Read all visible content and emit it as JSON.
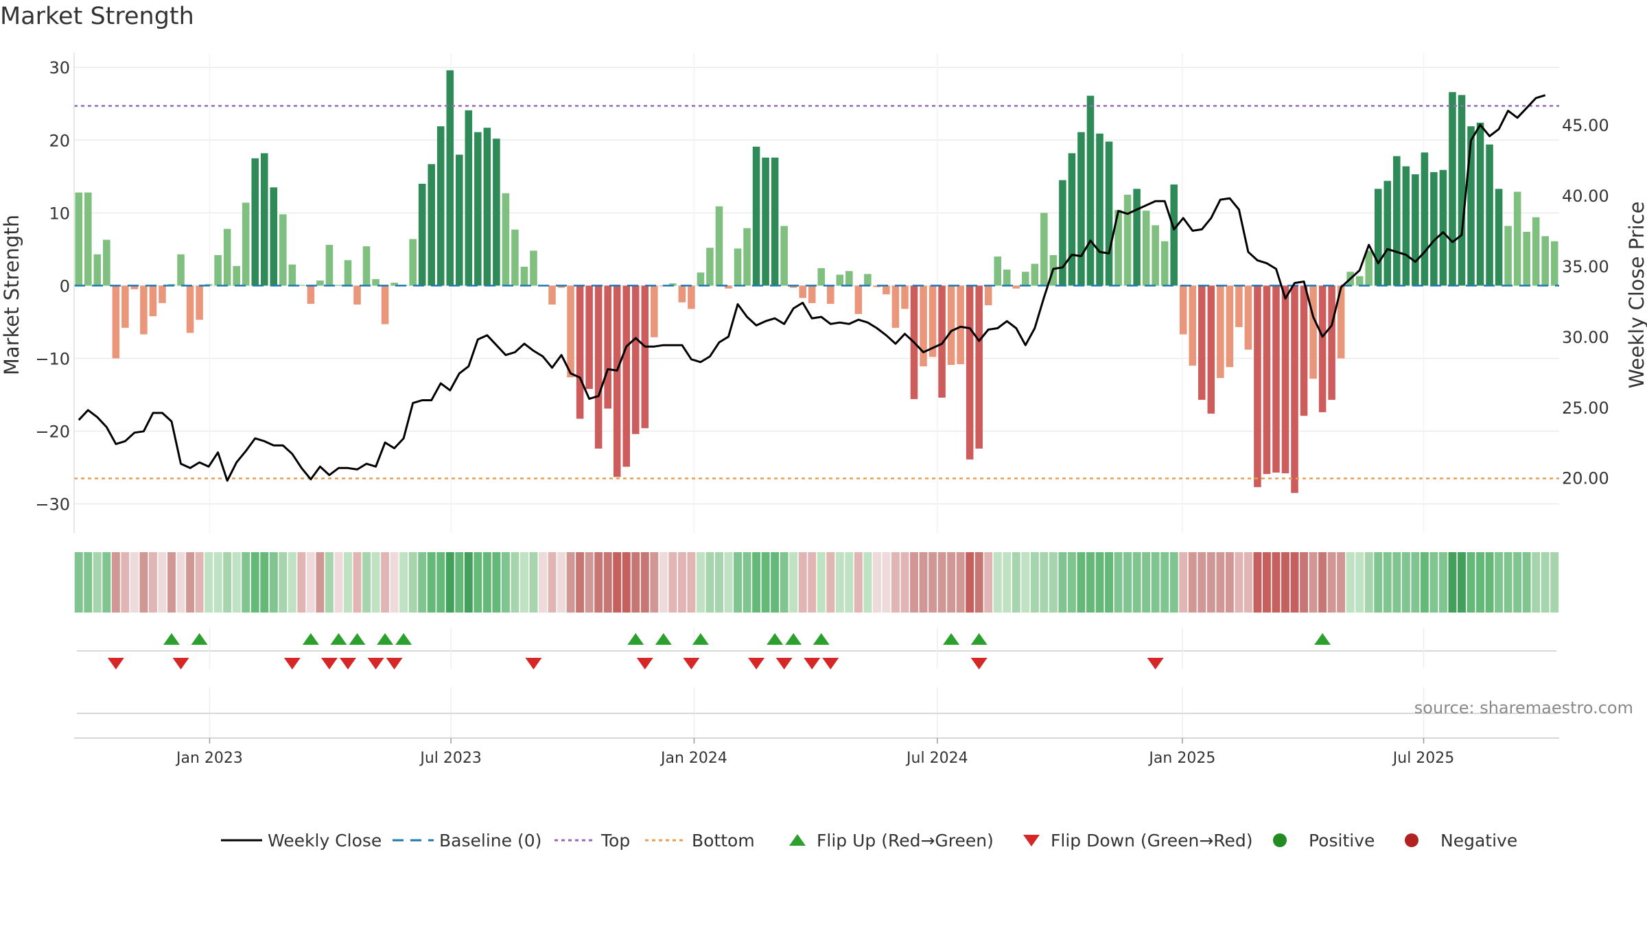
{
  "chart_data": {
    "type": "bar",
    "title": "Market Strength",
    "ylabel_left": "Market Strength",
    "ylabel_right": "Weekly Close Price",
    "source": "source: sharemaestro.com",
    "left_ylim": [
      -34,
      32
    ],
    "left_ticks": [
      -30,
      -20,
      -10,
      0,
      10,
      20,
      30
    ],
    "left_tick_labels": [
      "−30",
      "−20",
      "−10",
      "0",
      "10",
      "20",
      "30"
    ],
    "right_ylim": [
      16.1,
      50.1
    ],
    "right_ticks": [
      20,
      25,
      30,
      35,
      40,
      45
    ],
    "right_tick_labels": [
      "20.00",
      "25.00",
      "30.00",
      "35.00",
      "40.00",
      "45.00"
    ],
    "x_tick_labels": [
      "Jan 2023",
      "Jul 2023",
      "Jan 2024",
      "Jul 2024",
      "Jan 2025",
      "Jul 2025"
    ],
    "x_tick_weeks": [
      14.6,
      40.6,
      66.8,
      93.0,
      119.4,
      145.4
    ],
    "top_level": 24.7,
    "bottom_level": -26.5,
    "strength": [
      12.8,
      12.8,
      4.3,
      6.3,
      -10,
      -5.8,
      -0.5,
      -6.7,
      -4.2,
      -2.4,
      0.2,
      4.3,
      -6.5,
      -4.7,
      0.2,
      4.2,
      7.8,
      2.7,
      11.4,
      17.5,
      18.2,
      13.5,
      9.8,
      2.9,
      0.1,
      -2.5,
      0.7,
      5.6,
      0.1,
      3.5,
      -2.6,
      5.4,
      0.9,
      -5.3,
      0.4,
      0.1,
      6.4,
      14,
      16.7,
      21.9,
      29.6,
      18,
      24.1,
      21.1,
      21.7,
      20.2,
      12.7,
      7.7,
      2.6,
      4.8,
      -0.1,
      -2.6,
      -0.3,
      -12.6,
      -18.3,
      -14.2,
      -22.4,
      -16.9,
      -26.3,
      -24.9,
      -20.4,
      -19.6,
      -7.1,
      -0.1,
      0.3,
      -2.3,
      -3.2,
      1.8,
      5.2,
      10.9,
      -0.4,
      5.1,
      7.9,
      19.1,
      17.6,
      17.6,
      8.2,
      -0.3,
      -1.7,
      -2.4,
      2.4,
      -2.5,
      1.5,
      2,
      -3.9,
      1.6,
      -0.2,
      -1.2,
      -5.8,
      -3.2,
      -15.6,
      -11.1,
      -9.8,
      -15.4,
      -10.9,
      -10.8,
      -23.9,
      -22.4,
      -2.7,
      4,
      2.2,
      -0.4,
      1.9,
      3,
      10,
      4.2,
      14.5,
      18.2,
      21.1,
      26.1,
      20.9,
      19.8,
      10.4,
      12.5,
      13.3,
      10.3,
      8.3,
      6.1,
      13.9,
      -6.7,
      -11,
      -15.7,
      -17.6,
      -12.7,
      -11.2,
      -5.7,
      -8.8,
      -27.7,
      -25.9,
      -25.7,
      -25.8,
      -28.5,
      -17.9,
      -12.8,
      -17.4,
      -15.7,
      -10,
      1.9,
      1.3,
      4.8,
      13.3,
      14.4,
      17.8,
      16.4,
      15.3,
      18.3,
      15.6,
      15.9,
      26.6,
      26.2,
      21.9,
      22.4,
      19.4,
      13.3,
      8.2,
      12.9,
      7.4,
      9.4,
      6.8,
      6.1
    ],
    "weekly_close": [
      24.1,
      24.8,
      24.3,
      23.6,
      22.4,
      22.6,
      23.2,
      23.3,
      24.6,
      24.6,
      24,
      21,
      20.7,
      21.1,
      20.8,
      21.8,
      19.8,
      21.1,
      21.9,
      22.8,
      22.6,
      22.3,
      22.3,
      21.7,
      20.7,
      19.9,
      20.8,
      20.2,
      20.7,
      20.7,
      20.6,
      21,
      20.8,
      22.5,
      22.1,
      22.8,
      25.3,
      25.5,
      25.5,
      26.7,
      26.2,
      27.4,
      27.9,
      29.8,
      30.1,
      29.4,
      28.7,
      28.9,
      29.5,
      29,
      28.6,
      27.8,
      28.7,
      27.4,
      27.1,
      25.6,
      25.8,
      27.7,
      27.6,
      29.3,
      29.9,
      29.3,
      29.3,
      29.4,
      29.4,
      29.4,
      28.4,
      28.2,
      28.6,
      29.6,
      30,
      32.3,
      31.4,
      30.8,
      31.1,
      31.3,
      30.9,
      32,
      32.4,
      31.3,
      31.4,
      30.9,
      31,
      30.9,
      31.2,
      31,
      30.6,
      30.1,
      29.5,
      30.2,
      29.6,
      28.9,
      29.2,
      29.5,
      30.4,
      30.7,
      30.6,
      29.7,
      30.5,
      30.6,
      31.1,
      30.6,
      29.4,
      30.6,
      32.8,
      34.8,
      34.9,
      35.8,
      35.7,
      36.8,
      36,
      35.9,
      38.9,
      38.7,
      39,
      39.3,
      39.6,
      39.6,
      37.6,
      38.4,
      37.5,
      37.6,
      38.4,
      39.7,
      39.8,
      39,
      36,
      35.4,
      35.2,
      34.8,
      32.7,
      33.8,
      33.9,
      31.4,
      30,
      30.8,
      33.5,
      34.1,
      34.7,
      36.5,
      35.2,
      36.2,
      36,
      35.8,
      35.3,
      36,
      36.8,
      37.4,
      36.7,
      37.2,
      43.9,
      45,
      44.2,
      44.7,
      46,
      45.5,
      46.2,
      46.9,
      47.1
    ],
    "band_colors": [
      "#80c48f",
      "#80c48f",
      "#a6d5ad",
      "#80c48f",
      "#d09795",
      "#e0b5b4",
      "#eedada",
      "#d09795",
      "#e0b5b4",
      "#eedada",
      "#d09795",
      "#eedada",
      "#d09795",
      "#e0b5b4",
      "#bee2c2",
      "#bee2c2",
      "#a6d5ad",
      "#bee2c2",
      "#80c48f",
      "#65b978",
      "#65b978",
      "#80c48f",
      "#a6d5ad",
      "#bee2c2",
      "#e0b5b4",
      "#eedada",
      "#d09795",
      "#a6d5ad",
      "#eedada",
      "#bee2c2",
      "#e0b5b4",
      "#a6d5ad",
      "#bee2c2",
      "#e0b5b4",
      "#eedada",
      "#bee2c2",
      "#a6d5ad",
      "#80c48f",
      "#65b978",
      "#65b978",
      "#43a05a",
      "#65b978",
      "#43a05a",
      "#65b978",
      "#65b978",
      "#65b978",
      "#80c48f",
      "#a6d5ad",
      "#bee2c2",
      "#a6d5ad",
      "#eedada",
      "#e0b5b4",
      "#eedada",
      "#d09795",
      "#c67774",
      "#d09795",
      "#c67774",
      "#c67774",
      "#c6605e",
      "#c6605e",
      "#c67774",
      "#c67774",
      "#d09795",
      "#eedada",
      "#e0b5b4",
      "#e0b5b4",
      "#e0b5b4",
      "#bee2c2",
      "#a6d5ad",
      "#a6d5ad",
      "#bee2c2",
      "#80c48f",
      "#80c48f",
      "#65b978",
      "#65b978",
      "#65b978",
      "#80c48f",
      "#bee2c2",
      "#e0b5b4",
      "#e0b5b4",
      "#bee2c2",
      "#e0b5b4",
      "#bee2c2",
      "#bee2c2",
      "#e0b5b4",
      "#bee2c2",
      "#eedada",
      "#eedada",
      "#e0b5b4",
      "#e0b5b4",
      "#d09795",
      "#d09795",
      "#d09795",
      "#d09795",
      "#d09795",
      "#d09795",
      "#c6605e",
      "#c67774",
      "#e0b5b4",
      "#bee2c2",
      "#bee2c2",
      "#a6d5ad",
      "#bee2c2",
      "#a6d5ad",
      "#a6d5ad",
      "#a6d5ad",
      "#80c48f",
      "#80c48f",
      "#65b978",
      "#65b978",
      "#65b978",
      "#65b978",
      "#80c48f",
      "#80c48f",
      "#80c48f",
      "#80c48f",
      "#80c48f",
      "#80c48f",
      "#80c48f",
      "#e0b5b4",
      "#d09795",
      "#d09795",
      "#d09795",
      "#d09795",
      "#d09795",
      "#e0b5b4",
      "#e0b5b4",
      "#c6605e",
      "#c6605e",
      "#c6605e",
      "#c6605e",
      "#c6605e",
      "#c67774",
      "#d09795",
      "#c67774",
      "#d09795",
      "#d09795",
      "#bee2c2",
      "#bee2c2",
      "#a6d5ad",
      "#80c48f",
      "#80c48f",
      "#80c48f",
      "#80c48f",
      "#80c48f",
      "#65b978",
      "#80c48f",
      "#80c48f",
      "#43a05a",
      "#43a05a",
      "#65b978",
      "#65b978",
      "#65b978",
      "#80c48f",
      "#80c48f",
      "#80c48f",
      "#80c48f",
      "#a6d5ad",
      "#a6d5ad",
      "#a6d5ad"
    ],
    "flip_up_weeks": [
      10,
      13,
      25,
      28,
      30,
      33,
      35,
      60,
      63,
      67,
      75,
      77,
      80,
      94,
      97,
      134
    ],
    "flip_down_weeks": [
      4,
      11,
      23,
      27,
      29,
      32,
      34,
      49,
      61,
      66,
      73,
      76,
      79,
      81,
      97,
      116
    ],
    "colors": {
      "dark_green": "#2e8b57",
      "light_green": "#7fbf7f",
      "dark_red": "#cd5c5c",
      "light_red": "#e9967a",
      "line": "#000000",
      "baseline": "#1f77b4",
      "top": "#9467bd",
      "bottom": "#e4a050",
      "flip_up": "#2ca02c",
      "flip_down": "#d62728",
      "positive": "#228b22",
      "negative": "#b22222"
    },
    "legend": [
      {
        "label": "Weekly Close",
        "kind": "line"
      },
      {
        "label": "Baseline (0)",
        "kind": "dashed"
      },
      {
        "label": "Top",
        "kind": "dotted-top"
      },
      {
        "label": "Bottom",
        "kind": "dotted-bottom"
      },
      {
        "label": "Flip Up (Red→Green)",
        "kind": "tri-up"
      },
      {
        "label": "Flip Down (Green→Red)",
        "kind": "tri-down"
      },
      {
        "label": "Positive",
        "kind": "dot-pos"
      },
      {
        "label": "Negative",
        "kind": "dot-neg"
      }
    ]
  }
}
